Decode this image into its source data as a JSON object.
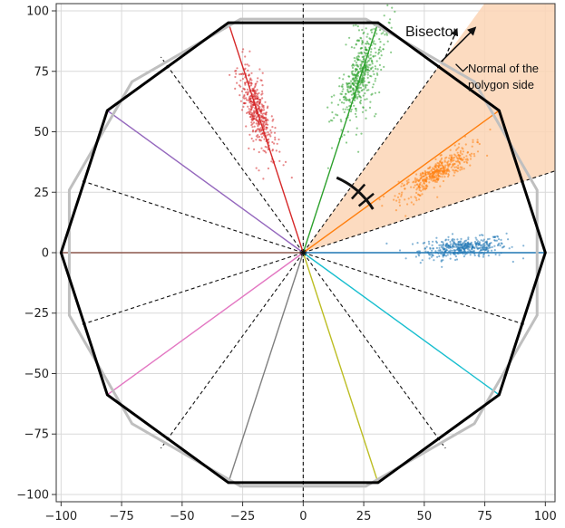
{
  "chart_data": {
    "type": "scatter",
    "title": "",
    "xlabel": "",
    "ylabel": "",
    "xlim": [
      -102,
      104
    ],
    "ylim": [
      -103,
      103
    ],
    "xticks": [
      -100,
      -75,
      -50,
      -25,
      0,
      25,
      50,
      75,
      100
    ],
    "yticks": [
      -100,
      -75,
      -50,
      -25,
      0,
      25,
      50,
      75,
      100
    ],
    "grid": true,
    "polygon_outer": {
      "name": "",
      "color": "#bfbfbf",
      "vertices": [
        [
          96.6,
          25.9
        ],
        [
          70.7,
          70.7
        ],
        [
          25.9,
          96.6
        ],
        [
          -25.9,
          96.6
        ],
        [
          -70.7,
          70.7
        ],
        [
          -96.6,
          25.9
        ],
        [
          -96.6,
          -25.9
        ],
        [
          -70.7,
          -70.7
        ],
        [
          -25.9,
          -96.6
        ],
        [
          25.9,
          -96.6
        ],
        [
          70.7,
          -70.7
        ],
        [
          96.6,
          -25.9
        ]
      ]
    },
    "polygon_inner": {
      "name": "",
      "color": "#000000",
      "vertices": [
        [
          100,
          0
        ],
        [
          80.9,
          58.8
        ],
        [
          30.9,
          95.1
        ],
        [
          -30.9,
          95.1
        ],
        [
          -80.9,
          58.8
        ],
        [
          -100,
          0
        ],
        [
          -80.9,
          -58.8
        ],
        [
          -30.9,
          -95.1
        ],
        [
          30.9,
          -95.1
        ],
        [
          80.9,
          -58.8
        ]
      ]
    },
    "class_rays": [
      {
        "angle_deg": 0,
        "color": "#1f77b4"
      },
      {
        "angle_deg": 36,
        "color": "#ff7f0e"
      },
      {
        "angle_deg": 72,
        "color": "#2ca02c"
      },
      {
        "angle_deg": 108,
        "color": "#d62728"
      },
      {
        "angle_deg": 144,
        "color": "#9467bd"
      },
      {
        "angle_deg": 180,
        "color": "#8c564b"
      },
      {
        "angle_deg": 216,
        "color": "#e377c2"
      },
      {
        "angle_deg": 252,
        "color": "#7f7f7f"
      },
      {
        "angle_deg": 288,
        "color": "#bcbd22"
      },
      {
        "angle_deg": 324,
        "color": "#17becf"
      }
    ],
    "bisectors_deg": [
      18,
      54,
      90,
      126,
      162,
      198,
      234,
      270,
      306,
      342
    ],
    "clusters": [
      {
        "color": "#1f77b4",
        "center": [
          66,
          2
        ],
        "major_angle_deg": 4,
        "spread_major": 9,
        "spread_minor": 1.6,
        "count": 420
      },
      {
        "color": "#ff7f0e",
        "center": [
          55,
          33
        ],
        "major_angle_deg": 33,
        "spread_major": 9,
        "spread_minor": 1.8,
        "count": 420
      },
      {
        "color": "#2ca02c",
        "center": [
          24,
          74
        ],
        "major_angle_deg": 72,
        "spread_major": 11,
        "spread_minor": 2.6,
        "count": 480
      },
      {
        "color": "#d62728",
        "center": [
          -19,
          58
        ],
        "major_angle_deg": 106,
        "spread_major": 9,
        "spread_minor": 2.0,
        "count": 420
      }
    ],
    "shaded_sector": {
      "from_deg": 18,
      "to_deg": 54,
      "color": "#fbd5b5"
    },
    "annotations": [
      {
        "text": "Bisector"
      },
      {
        "text": "Normal of the"
      },
      {
        "text": "polygon side"
      }
    ]
  }
}
